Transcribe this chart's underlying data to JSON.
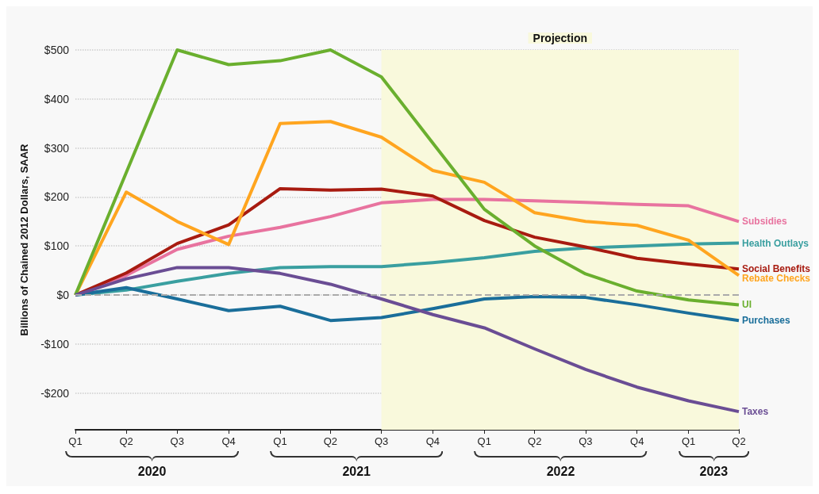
{
  "chart_data": {
    "type": "line",
    "ylabel": "Billions of Chained 2012 Dollars, SAAR",
    "x": [
      "2020-01",
      "2020-04",
      "2020-07",
      "2020-10",
      "2021-01",
      "2021-04",
      "2021-07",
      "2021-10",
      "2022-01",
      "2022-04",
      "2022-07",
      "2022-10",
      "2023-01",
      "2023-04"
    ],
    "xlim": [
      "2020-01",
      "2023-04"
    ],
    "xticks": [
      {
        "value": "2020-01",
        "label": "Q1"
      },
      {
        "value": "2020-04",
        "label": "Q2"
      },
      {
        "value": "2020-07",
        "label": "Q3"
      },
      {
        "value": "2020-10",
        "label": "Q4"
      },
      {
        "value": "2021-01",
        "label": "Q1"
      },
      {
        "value": "2021-04",
        "label": "Q2"
      },
      {
        "value": "2021-07",
        "label": "Q3"
      },
      {
        "value": "2021-10",
        "label": "Q4"
      },
      {
        "value": "2022-01",
        "label": "Q1"
      },
      {
        "value": "2022-04",
        "label": "Q2"
      },
      {
        "value": "2022-07",
        "label": "Q3"
      },
      {
        "value": "2022-10",
        "label": "Q4"
      },
      {
        "value": "2023-01",
        "label": "Q1"
      },
      {
        "value": "2023-04",
        "label": "Q2"
      }
    ],
    "ylim": [
      -275,
      500
    ],
    "yticks": [
      {
        "value": -200,
        "label": "-$200"
      },
      {
        "value": -100,
        "label": "-$100"
      },
      {
        "value": 0,
        "label": "$0"
      },
      {
        "value": 100,
        "label": "$100"
      },
      {
        "value": 200,
        "label": "$200"
      },
      {
        "value": 300,
        "label": "$300"
      },
      {
        "value": 400,
        "label": "$400"
      },
      {
        "value": 500,
        "label": "$500"
      }
    ],
    "grid": "y",
    "marker": "none",
    "series": [
      {
        "name": "Subsidies",
        "color": "#e8739f",
        "values": [
          0,
          40,
          93,
          120,
          138,
          160,
          188,
          195,
          195,
          192,
          189,
          185,
          182,
          150
        ]
      },
      {
        "name": "Health Outlays",
        "color": "#3a9fa0",
        "values": [
          0,
          10,
          28,
          44,
          56,
          58,
          58,
          66,
          76,
          89,
          96,
          100,
          104,
          106
        ]
      },
      {
        "name": "Social Benefits",
        "color": "#a81b10",
        "values": [
          0,
          45,
          105,
          143,
          217,
          214,
          216,
          202,
          152,
          118,
          98,
          75,
          63,
          53
        ]
      },
      {
        "name": "Rebate Checks",
        "color": "#ffa51f",
        "values": [
          0,
          210,
          150,
          103,
          350,
          354,
          322,
          254,
          230,
          168,
          150,
          142,
          112,
          40
        ]
      },
      {
        "name": "UI",
        "color": "#6aaf2e",
        "values": [
          0,
          250,
          500,
          470,
          478,
          500,
          445,
          310,
          175,
          100,
          43,
          8,
          -10,
          -20
        ]
      },
      {
        "name": "Purchases",
        "color": "#1a6e9a",
        "values": [
          0,
          15,
          -8,
          -32,
          -23,
          -52,
          -46,
          -28,
          -8,
          -3,
          -5,
          -20,
          -37,
          -52
        ]
      },
      {
        "name": "Taxes",
        "color": "#6a4d94",
        "values": [
          0,
          33,
          56,
          56,
          44,
          22,
          -8,
          -40,
          -67,
          -110,
          -152,
          -188,
          -216,
          -238
        ]
      }
    ],
    "ref_lines": [
      {
        "axis": "y",
        "value": 0,
        "color": "#aaaaaa",
        "line_style": "dashed"
      }
    ],
    "bands": [
      {
        "axis": "x",
        "from": "2021-07",
        "to": "2023-04",
        "label": "Projection",
        "color": "#f9f9dc"
      }
    ],
    "annotations": [
      "2020",
      "2021",
      "2022",
      "2023"
    ]
  }
}
